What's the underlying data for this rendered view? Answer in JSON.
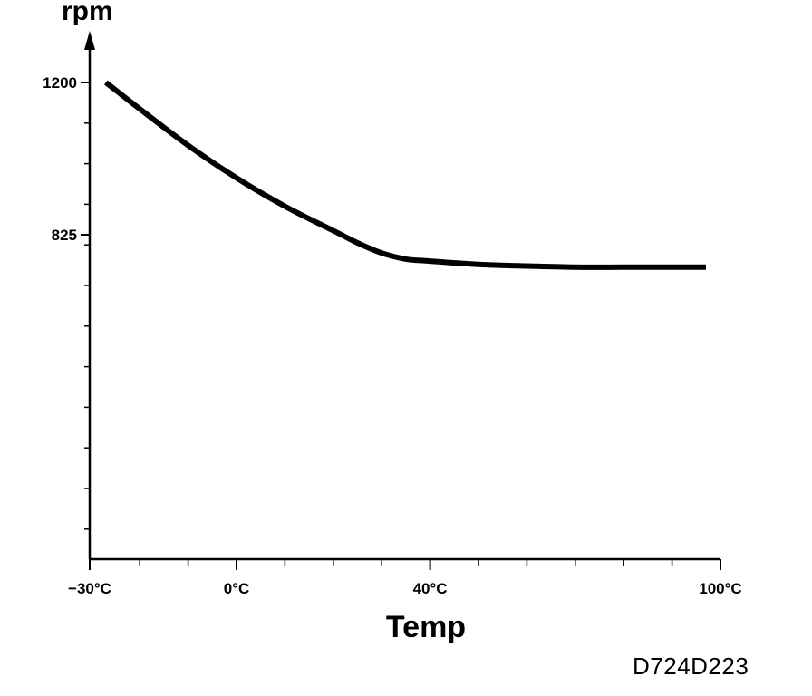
{
  "chart_data": {
    "type": "line",
    "title": "",
    "xlabel": "Temp",
    "ylabel": "rpm",
    "xlim": [
      -30,
      100
    ],
    "ylim": [
      0,
      1200
    ],
    "x_ticks": [
      {
        "value": -30,
        "label": "−30°C"
      },
      {
        "value": 0,
        "label": "0°C"
      },
      {
        "value": 40,
        "label": "40°C"
      },
      {
        "value": 100,
        "label": "100°C"
      }
    ],
    "y_ticks": [
      {
        "value": 1200,
        "label": "1200"
      },
      {
        "value": 825,
        "label": "825"
      }
    ],
    "x_minor_tick_step": 10,
    "y_minor_tick_step": 100,
    "grid": false,
    "legend": "none",
    "series": [
      {
        "x": [
          -27,
          -20,
          -10,
          0,
          10,
          20,
          25,
          30,
          35,
          40,
          50,
          60,
          70,
          80,
          90,
          97
        ],
        "y": [
          1200,
          1135,
          1045,
          965,
          895,
          835,
          805,
          780,
          765,
          760,
          752,
          748,
          745,
          745,
          745,
          745
        ],
        "color": "#000000"
      }
    ]
  },
  "figure_code": "D724D223"
}
